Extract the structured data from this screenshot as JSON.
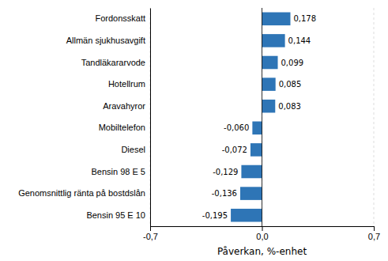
{
  "chart_data": {
    "type": "bar",
    "orientation": "horizontal",
    "categories": [
      "Bensin 95 E 10",
      "Genomsnittlig ränta på bostdslån",
      "Bensin 98 E 5",
      "Diesel",
      "Mobiltelefon",
      "Aravahyror",
      "Hotellrum",
      "Tandläkararvode",
      "Allmän sjukhusavgift",
      "Fordonsskatt"
    ],
    "values": [
      -0.195,
      -0.136,
      -0.129,
      -0.072,
      -0.06,
      0.083,
      0.085,
      0.099,
      0.144,
      0.178
    ],
    "value_labels": [
      "-0,195",
      "-0,136",
      "-0,129",
      "-0,072",
      "-0,060",
      "0,083",
      "0,085",
      "0,099",
      "0,144",
      "0,178"
    ],
    "data_labels": true,
    "color": "#2E75B6",
    "xlabel": "Påverkan, %-enhet",
    "xlim": [
      -0.7,
      0.7
    ],
    "xticks": [
      {
        "value": -0.7,
        "label": "-0,7"
      },
      {
        "value": 0.0,
        "label": "0,0"
      },
      {
        "value": 0.7,
        "label": "0,7"
      }
    ],
    "grid": true
  }
}
